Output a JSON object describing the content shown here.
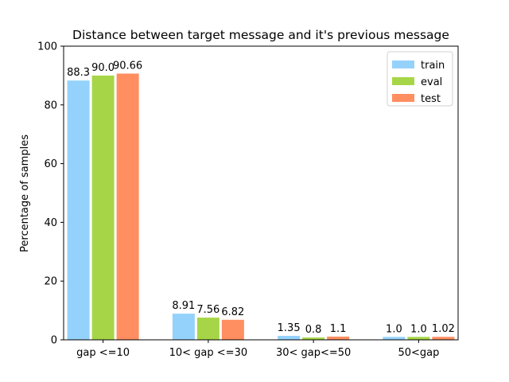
{
  "chart_data": {
    "type": "bar",
    "title": "Distance between target message and it's previous message",
    "xlabel": "",
    "ylabel": "Percentage of samples",
    "ylim": [
      0,
      100
    ],
    "yticks": [
      0,
      20,
      40,
      60,
      80,
      100
    ],
    "categories": [
      "gap <=10",
      "10< gap <=30",
      "30< gap<=50",
      "50<gap"
    ],
    "series": [
      {
        "name": "train",
        "color": "#94d2fb",
        "values": [
          88.3,
          8.91,
          1.35,
          1.0
        ],
        "labels": [
          "88.3",
          "8.91",
          "1.35",
          "1.0"
        ]
      },
      {
        "name": "eval",
        "color": "#a6d647",
        "values": [
          90.0,
          7.56,
          0.8,
          1.0
        ],
        "labels": [
          "90.0",
          "7.56",
          "0.8",
          "1.0"
        ]
      },
      {
        "name": "test",
        "color": "#ff8e61",
        "values": [
          90.66,
          6.82,
          1.1,
          1.02
        ],
        "labels": [
          "90.66",
          "6.82",
          "1.1",
          "1.02"
        ]
      }
    ],
    "legend": "top-right",
    "grid": false
  }
}
